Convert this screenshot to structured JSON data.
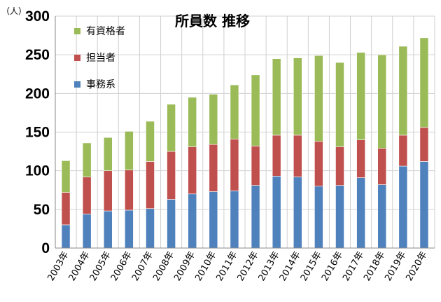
{
  "chart_data": {
    "type": "bar",
    "stacked": true,
    "title": "所員数 推移",
    "ylabel": "（人）",
    "ylim": [
      0,
      300
    ],
    "yticks": [
      0,
      50,
      100,
      150,
      200,
      250,
      300
    ],
    "grid": true,
    "legend_position": "top-left",
    "categories": [
      "2003年",
      "2004年",
      "2005年",
      "2006年",
      "2007年",
      "2008年",
      "2009年",
      "2010年",
      "2011年",
      "2012年",
      "2013年",
      "2014年",
      "2015年",
      "2016年",
      "2017年",
      "2018年",
      "2019年",
      "2020年"
    ],
    "series": [
      {
        "name": "事務系",
        "color": "#4f81bd",
        "values": [
          30,
          44,
          48,
          49,
          51,
          63,
          70,
          73,
          74,
          81,
          93,
          92,
          80,
          81,
          91,
          82,
          106,
          112
        ]
      },
      {
        "name": "担当者",
        "color": "#c0504d",
        "values": [
          42,
          48,
          52,
          52,
          61,
          62,
          61,
          61,
          67,
          51,
          53,
          54,
          58,
          50,
          49,
          47,
          40,
          44
        ]
      },
      {
        "name": "有資格者",
        "color": "#9bbb59",
        "values": [
          41,
          44,
          43,
          50,
          52,
          61,
          64,
          65,
          70,
          92,
          99,
          100,
          111,
          109,
          113,
          121,
          115,
          116
        ]
      }
    ],
    "legend_order": [
      "有資格者",
      "担当者",
      "事務系"
    ]
  }
}
